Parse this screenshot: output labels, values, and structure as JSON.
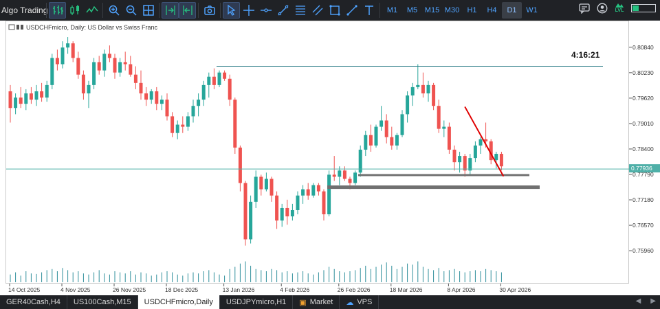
{
  "app": {
    "title": "Algo Trading"
  },
  "toolbar": {
    "timeframes": [
      "M1",
      "M5",
      "M15",
      "M30",
      "H1",
      "H4",
      "D1",
      "W1"
    ],
    "active_timeframe": "D1",
    "icons": [
      "bar-chart-icon",
      "candles-icon",
      "line-chart-icon",
      "zoom-in-icon",
      "zoom-out-icon",
      "tile-windows-icon",
      "auto-scroll-icon",
      "chart-shift-icon",
      "screenshot-icon",
      "cursor-icon",
      "crosshair-icon",
      "horizontal-line-icon",
      "trendline-icon",
      "fibonacci-icon",
      "channel-icon",
      "shapes-icon",
      "arrow-tool-icon",
      "text-tool-icon"
    ]
  },
  "header_right": {
    "level_badge": "LVL"
  },
  "chart": {
    "symbol_label": "USDCHFmicro, Daily:  US Dollar vs Swiss Franc",
    "countdown": "4:16:21",
    "current_price": "0.77936",
    "colors": {
      "bull": "#26a69a",
      "bear": "#ef5350",
      "grid": "#e6e6e6",
      "bid_line": "#4fb0a8",
      "trend": "#e00000",
      "zone": "#707070"
    }
  },
  "chart_data": {
    "type": "candlestick",
    "title": "USDCHFmicro, Daily:  US Dollar vs Swiss Franc",
    "y_ticks": [
      "0.80840",
      "0.80230",
      "0.79620",
      "0.79010",
      "0.78400",
      "0.77790",
      "0.77180",
      "0.76570",
      "0.75960"
    ],
    "x_ticks": [
      "14 Oct 2025",
      "4 Nov 2025",
      "26 Nov 2025",
      "18 Dec 2025",
      "13 Jan 2026",
      "4 Feb 2026",
      "26 Feb 2026",
      "18 Mar 2026",
      "8 Apr 2026",
      "30 Apr 2026"
    ],
    "ylim": [
      0.7555,
      0.8115
    ],
    "candles": [
      [
        0.798,
        0.7995,
        0.7905,
        0.794
      ],
      [
        0.794,
        0.7975,
        0.7925,
        0.7965
      ],
      [
        0.7965,
        0.799,
        0.794,
        0.795
      ],
      [
        0.795,
        0.7985,
        0.7935,
        0.7975
      ],
      [
        0.7975,
        0.799,
        0.795,
        0.796
      ],
      [
        0.796,
        0.7995,
        0.7945,
        0.798
      ],
      [
        0.798,
        0.8,
        0.7955,
        0.7965
      ],
      [
        0.7965,
        0.8005,
        0.7955,
        0.7995
      ],
      [
        0.7995,
        0.807,
        0.7985,
        0.806
      ],
      [
        0.806,
        0.808,
        0.803,
        0.8045
      ],
      [
        0.8045,
        0.81,
        0.8035,
        0.8085
      ],
      [
        0.8085,
        0.811,
        0.807,
        0.8095
      ],
      [
        0.8095,
        0.81,
        0.805,
        0.806
      ],
      [
        0.806,
        0.8075,
        0.801,
        0.802
      ],
      [
        0.802,
        0.803,
        0.796,
        0.7975
      ],
      [
        0.7975,
        0.8005,
        0.794,
        0.7995
      ],
      [
        0.7995,
        0.806,
        0.7985,
        0.805
      ],
      [
        0.805,
        0.8065,
        0.802,
        0.803
      ],
      [
        0.803,
        0.808,
        0.8015,
        0.807
      ],
      [
        0.807,
        0.809,
        0.805,
        0.806
      ],
      [
        0.806,
        0.807,
        0.801,
        0.8025
      ],
      [
        0.8025,
        0.806,
        0.8015,
        0.805
      ],
      [
        0.805,
        0.8075,
        0.803,
        0.8045
      ],
      [
        0.8045,
        0.8065,
        0.8015,
        0.802
      ],
      [
        0.802,
        0.804,
        0.7985,
        0.8
      ],
      [
        0.8,
        0.803,
        0.796,
        0.7975
      ],
      [
        0.7975,
        0.799,
        0.7945,
        0.796
      ],
      [
        0.796,
        0.7985,
        0.795,
        0.798
      ],
      [
        0.798,
        0.799,
        0.7935,
        0.795
      ],
      [
        0.795,
        0.797,
        0.7935,
        0.796
      ],
      [
        0.796,
        0.7975,
        0.791,
        0.792
      ],
      [
        0.792,
        0.793,
        0.787,
        0.788
      ],
      [
        0.788,
        0.791,
        0.7865,
        0.79
      ],
      [
        0.79,
        0.792,
        0.788,
        0.7895
      ],
      [
        0.7895,
        0.793,
        0.7885,
        0.792
      ],
      [
        0.792,
        0.796,
        0.7905,
        0.7945
      ],
      [
        0.7945,
        0.7975,
        0.792,
        0.796
      ],
      [
        0.796,
        0.8005,
        0.7945,
        0.7995
      ],
      [
        0.7995,
        0.8025,
        0.7965,
        0.8015
      ],
      [
        0.8015,
        0.8035,
        0.7985,
        0.7995
      ],
      [
        0.7995,
        0.803,
        0.799,
        0.8025
      ],
      [
        0.8025,
        0.803,
        0.8005,
        0.801
      ],
      [
        0.801,
        0.802,
        0.7945,
        0.796
      ],
      [
        0.796,
        0.7965,
        0.783,
        0.7845
      ],
      [
        0.7845,
        0.785,
        0.774,
        0.776
      ],
      [
        0.776,
        0.7765,
        0.761,
        0.7625
      ],
      [
        0.7625,
        0.773,
        0.7615,
        0.7715
      ],
      [
        0.7715,
        0.779,
        0.77,
        0.7775
      ],
      [
        0.7775,
        0.778,
        0.773,
        0.7745
      ],
      [
        0.7745,
        0.7785,
        0.774,
        0.777
      ],
      [
        0.777,
        0.7775,
        0.7715,
        0.773
      ],
      [
        0.773,
        0.774,
        0.765,
        0.767
      ],
      [
        0.767,
        0.771,
        0.7655,
        0.77
      ],
      [
        0.77,
        0.772,
        0.766,
        0.768
      ],
      [
        0.768,
        0.771,
        0.767,
        0.7695
      ],
      [
        0.7695,
        0.774,
        0.7685,
        0.773
      ],
      [
        0.773,
        0.7755,
        0.771,
        0.7745
      ],
      [
        0.7745,
        0.776,
        0.772,
        0.773
      ],
      [
        0.773,
        0.776,
        0.7725,
        0.7755
      ],
      [
        0.7755,
        0.776,
        0.773,
        0.774
      ],
      [
        0.774,
        0.7745,
        0.767,
        0.7685
      ],
      [
        0.7685,
        0.779,
        0.768,
        0.778
      ],
      [
        0.778,
        0.7825,
        0.7765,
        0.7775
      ],
      [
        0.7775,
        0.78,
        0.7755,
        0.779
      ],
      [
        0.779,
        0.78,
        0.7765,
        0.777
      ],
      [
        0.777,
        0.7775,
        0.7745,
        0.776
      ],
      [
        0.776,
        0.779,
        0.7755,
        0.7785
      ],
      [
        0.7785,
        0.785,
        0.7775,
        0.784
      ],
      [
        0.784,
        0.7885,
        0.7825,
        0.7875
      ],
      [
        0.7875,
        0.79,
        0.7835,
        0.785
      ],
      [
        0.785,
        0.79,
        0.7845,
        0.7895
      ],
      [
        0.7895,
        0.7945,
        0.7885,
        0.791
      ],
      [
        0.791,
        0.7925,
        0.7855,
        0.787
      ],
      [
        0.787,
        0.7895,
        0.784,
        0.785
      ],
      [
        0.785,
        0.788,
        0.784,
        0.7875
      ],
      [
        0.7875,
        0.7935,
        0.787,
        0.7925
      ],
      [
        0.7925,
        0.798,
        0.7905,
        0.797
      ],
      [
        0.797,
        0.8,
        0.7945,
        0.799
      ],
      [
        0.799,
        0.8045,
        0.7985,
        0.7995
      ],
      [
        0.7995,
        0.8025,
        0.7965,
        0.7975
      ],
      [
        0.7975,
        0.8005,
        0.7955,
        0.7995
      ],
      [
        0.7995,
        0.8,
        0.7935,
        0.7945
      ],
      [
        0.7945,
        0.796,
        0.788,
        0.789
      ],
      [
        0.789,
        0.791,
        0.787,
        0.7895
      ],
      [
        0.7895,
        0.7905,
        0.783,
        0.784
      ],
      [
        0.784,
        0.785,
        0.779,
        0.781
      ],
      [
        0.781,
        0.7835,
        0.7785,
        0.7825
      ],
      [
        0.7825,
        0.783,
        0.7775,
        0.779
      ],
      [
        0.779,
        0.783,
        0.778,
        0.782
      ],
      [
        0.782,
        0.786,
        0.781,
        0.785
      ],
      [
        0.785,
        0.787,
        0.783,
        0.7865
      ],
      [
        0.7865,
        0.7905,
        0.7845,
        0.786
      ],
      [
        0.786,
        0.7865,
        0.7805,
        0.7815
      ],
      [
        0.7815,
        0.7835,
        0.7795,
        0.783
      ],
      [
        0.783,
        0.7835,
        0.779,
        0.78
      ]
    ],
    "volume": [
      0.35,
      0.45,
      0.3,
      0.5,
      0.4,
      0.38,
      0.45,
      0.55,
      0.6,
      0.5,
      0.65,
      0.55,
      0.45,
      0.5,
      0.4,
      0.35,
      0.45,
      0.55,
      0.4,
      0.35,
      0.5,
      0.45,
      0.4,
      0.5,
      0.35,
      0.45,
      0.4,
      0.3,
      0.35,
      0.45,
      0.5,
      0.45,
      0.35,
      0.3,
      0.4,
      0.45,
      0.4,
      0.5,
      0.55,
      0.45,
      0.35,
      0.3,
      0.6,
      0.7,
      0.85,
      0.95,
      0.75,
      0.6,
      0.55,
      0.5,
      0.6,
      0.55,
      0.45,
      0.5,
      0.4,
      0.45,
      0.5,
      0.4,
      0.35,
      0.45,
      0.55,
      0.7,
      0.6,
      0.5,
      0.45,
      0.5,
      0.55,
      0.65,
      0.75,
      0.6,
      0.7,
      0.8,
      0.9,
      0.75,
      0.6,
      0.7,
      0.85,
      0.8,
      0.95,
      0.7,
      0.6,
      0.55,
      0.65,
      0.5,
      0.55,
      0.6,
      0.5,
      0.45,
      0.5,
      0.55,
      0.5,
      0.6,
      0.55,
      0.5,
      0.45
    ],
    "resistance": 0.804,
    "support_zone": 0.7779,
    "support_zone_2": 0.775,
    "trendline": {
      "from": [
        87,
        0.7943
      ],
      "to": [
        94,
        0.7776
      ]
    },
    "grid": false
  },
  "tabs": [
    {
      "label": "GER40Cash,H4",
      "active": false
    },
    {
      "label": "US100Cash,M15",
      "active": false
    },
    {
      "label": "USDCHFmicro,Daily",
      "active": true
    },
    {
      "label": "USDJPYmicro,H1",
      "active": false
    },
    {
      "label": "Market",
      "active": false,
      "icon": "bag-icon"
    },
    {
      "label": "VPS",
      "active": false,
      "icon": "cloud-icon"
    }
  ]
}
